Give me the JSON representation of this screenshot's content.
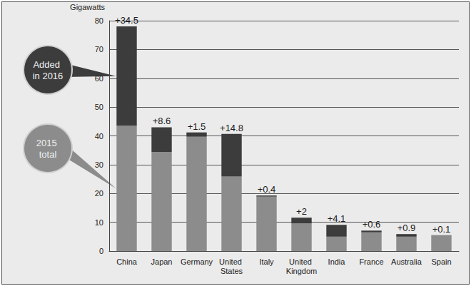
{
  "chart_data": {
    "type": "bar",
    "stacked": true,
    "y_label": "Gigawatts",
    "categories": [
      "China",
      "Japan",
      "Germany",
      "United States",
      "Italy",
      "United Kingdom",
      "India",
      "France",
      "Australia",
      "Spain"
    ],
    "series": [
      {
        "name": "2015 total",
        "color": "#8c8c8c",
        "values": [
          43.5,
          34.4,
          39.7,
          25.9,
          18.9,
          9.6,
          5,
          6.5,
          5,
          5.4
        ]
      },
      {
        "name": "Added in 2016",
        "color": "#3c3c3c",
        "values": [
          34.5,
          8.6,
          1.5,
          14.8,
          0.4,
          2,
          4.1,
          0.6,
          0.9,
          0.1
        ],
        "value_labels": [
          "+34.5",
          "+8.6",
          "+1.5",
          "+14.8",
          "+0.4",
          "+2",
          "+4.1",
          "+0.6",
          "+0.9",
          "+0.1"
        ]
      }
    ],
    "ylim": [
      0,
      80
    ],
    "yticks": [
      0,
      10,
      20,
      30,
      40,
      50,
      60,
      70,
      80
    ],
    "grid": true,
    "data_labels": true,
    "legend": "left"
  }
}
